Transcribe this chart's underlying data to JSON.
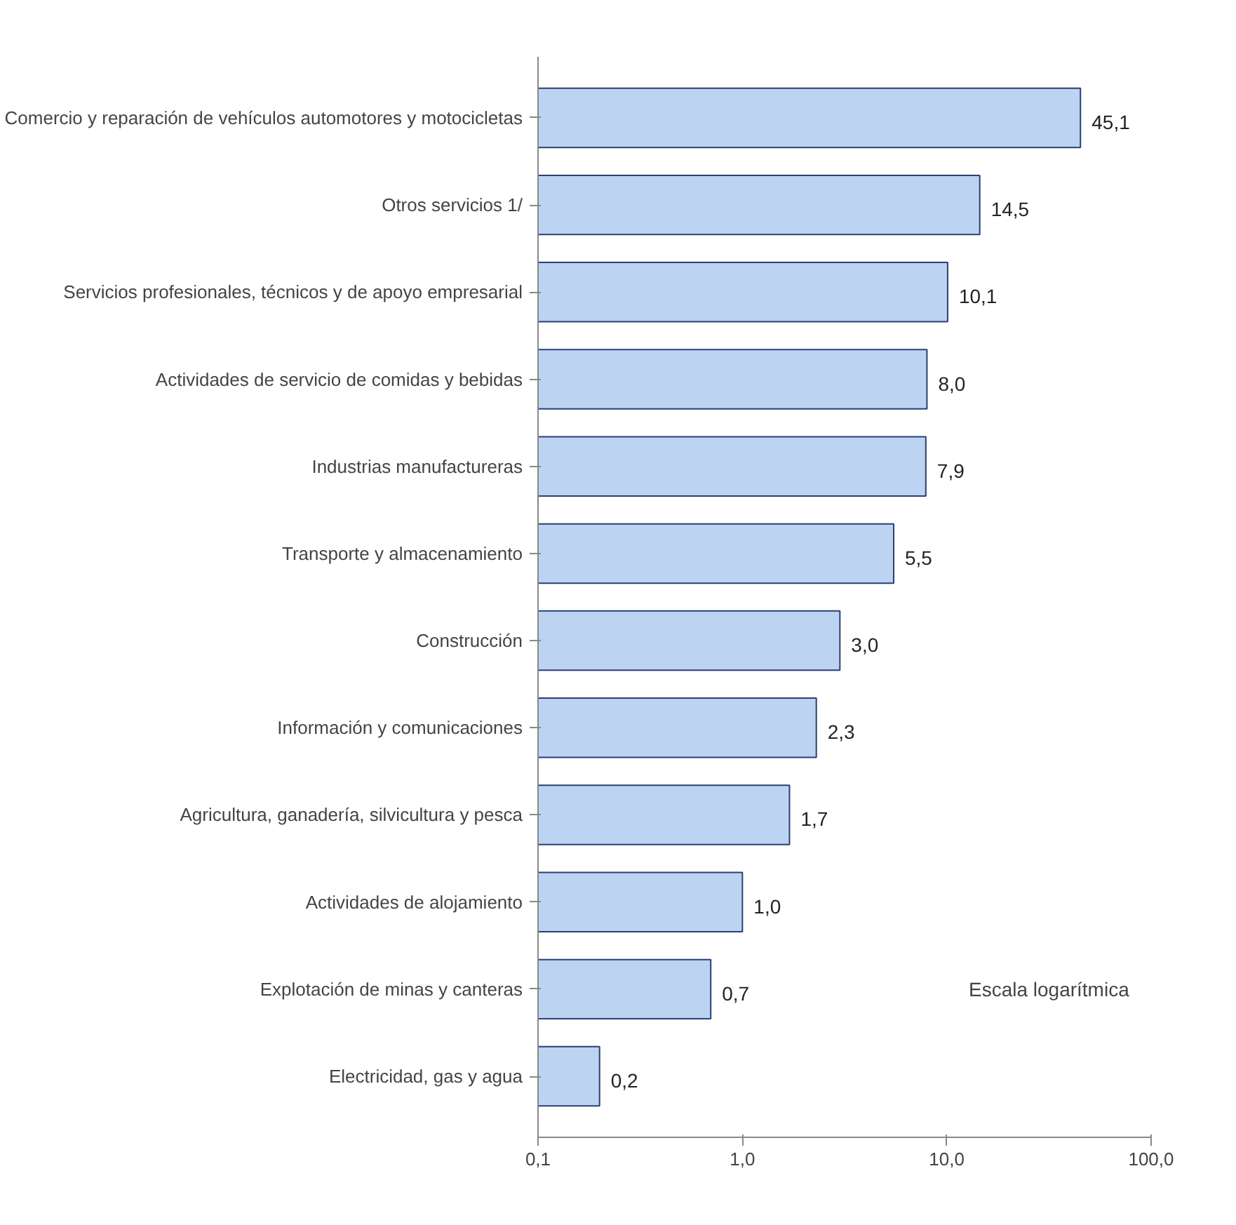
{
  "chart_data": {
    "type": "bar",
    "orientation": "horizontal",
    "log": "x",
    "categories": [
      "Comercio y reparación de vehículos automotores y motocicletas",
      "Otros servicios 1/",
      "Servicios profesionales, técnicos y de apoyo empresarial",
      "Actividades de servicio de comidas y bebidas",
      "Industrias manufactureras",
      "Transporte y almacenamiento",
      "Construcción",
      "Información y comunicaciones",
      "Agricultura, ganadería, silvicultura y pesca",
      "Actividades de alojamiento",
      "Explotación de minas y canteras",
      "Electricidad, gas y agua"
    ],
    "values": [
      45.1,
      14.5,
      10.1,
      8.0,
      7.9,
      5.5,
      3.0,
      2.3,
      1.7,
      1.0,
      0.7,
      0.2
    ],
    "value_labels": [
      "45,1",
      "14,5",
      "10,1",
      "8,0",
      "7,9",
      "5,5",
      "3,0",
      "2,3",
      "1,7",
      "1,0",
      "0,7",
      "0,2"
    ],
    "color": "#bcd3f2",
    "xlim": [
      0.1,
      100
    ],
    "xticks": [
      {
        "value": 0.1,
        "label": "0,1"
      },
      {
        "value": 1,
        "label": "1,0"
      },
      {
        "value": 10,
        "label": "10,0"
      },
      {
        "value": 100,
        "label": "100,0"
      }
    ],
    "grid": false,
    "annotations": [
      "Escala logarítmica"
    ]
  }
}
